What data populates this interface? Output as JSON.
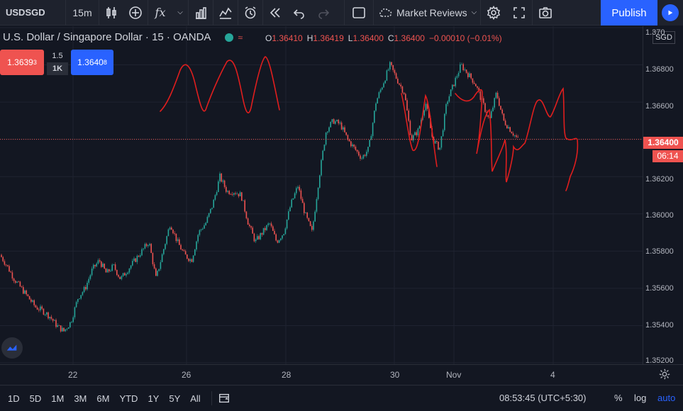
{
  "toolbar": {
    "symbol": "USDSGD",
    "interval": "15m",
    "layout_name": "Market Reviews",
    "publish_label": "Publish"
  },
  "legend": {
    "title": "U.S. Dollar / Singapore Dollar · 15 · OANDA",
    "open_key": "O",
    "open": "1.36410",
    "high_key": "H",
    "high": "1.36419",
    "low_key": "L",
    "low": "1.36400",
    "close_key": "C",
    "close": "1.36400",
    "change": "−0.00010 (−0.01%)"
  },
  "trade": {
    "sell_price": "1.3639",
    "sell_pip": "3",
    "spread": "1.5",
    "quantity": "1K",
    "buy_price": "1.3640",
    "buy_pip": "8"
  },
  "price_scale": {
    "currency": "SGD",
    "labels": [
      "1.36800",
      "1.36600",
      "1.36200",
      "1.36000",
      "1.35800",
      "1.35600",
      "1.35400",
      "1.35200",
      "1.370"
    ],
    "last_price": "1.36400",
    "countdown": "06:14"
  },
  "time_scale": {
    "labels": [
      "22",
      "26",
      "28",
      "30",
      "Nov",
      "4"
    ]
  },
  "bottom": {
    "ranges": [
      "1D",
      "5D",
      "1M",
      "3M",
      "6M",
      "YTD",
      "1Y",
      "5Y",
      "All"
    ],
    "clock": "08:53:45 (UTC+5:30)",
    "percent_label": "%",
    "log_label": "log",
    "auto_label": "auto"
  },
  "colors": {
    "up": "#26a69a",
    "down": "#ef5350",
    "accent": "#2962ff",
    "drawing": "#e01e1e"
  },
  "chart_data": {
    "type": "candlestick",
    "symbol": "USDSGD",
    "ylim": [
      1.352,
      1.37
    ],
    "close_path": [
      [
        0,
        1.3578
      ],
      [
        10,
        1.3572
      ],
      [
        20,
        1.3565
      ],
      [
        30,
        1.356
      ],
      [
        40,
        1.3555
      ],
      [
        50,
        1.355
      ],
      [
        60,
        1.3548
      ],
      [
        70,
        1.3545
      ],
      [
        80,
        1.354
      ],
      [
        90,
        1.3537
      ],
      [
        100,
        1.3542
      ],
      [
        110,
        1.3555
      ],
      [
        120,
        1.356
      ],
      [
        130,
        1.357
      ],
      [
        140,
        1.3575
      ],
      [
        150,
        1.3568
      ],
      [
        160,
        1.3572
      ],
      [
        170,
        1.3565
      ],
      [
        180,
        1.357
      ],
      [
        190,
        1.3575
      ],
      [
        200,
        1.358
      ],
      [
        210,
        1.3585
      ],
      [
        220,
        1.3565
      ],
      [
        230,
        1.358
      ],
      [
        240,
        1.3595
      ],
      [
        250,
        1.3585
      ],
      [
        260,
        1.3578
      ],
      [
        270,
        1.3575
      ],
      [
        280,
        1.359
      ],
      [
        290,
        1.3595
      ],
      [
        300,
        1.3605
      ],
      [
        310,
        1.362
      ],
      [
        320,
        1.3612
      ],
      [
        330,
        1.3612
      ],
      [
        340,
        1.361
      ],
      [
        350,
        1.3595
      ],
      [
        360,
        1.3585
      ],
      [
        370,
        1.359
      ],
      [
        380,
        1.3595
      ],
      [
        390,
        1.3585
      ],
      [
        400,
        1.359
      ],
      [
        410,
        1.3605
      ],
      [
        420,
        1.3615
      ],
      [
        430,
        1.36
      ],
      [
        440,
        1.359
      ],
      [
        450,
        1.362
      ],
      [
        460,
        1.3645
      ],
      [
        470,
        1.365
      ],
      [
        480,
        1.3648
      ],
      [
        490,
        1.364
      ],
      [
        500,
        1.3635
      ],
      [
        510,
        1.363
      ],
      [
        520,
        1.3635
      ],
      [
        530,
        1.366
      ],
      [
        540,
        1.367
      ],
      [
        550,
        1.368
      ],
      [
        560,
        1.3672
      ],
      [
        570,
        1.3665
      ],
      [
        580,
        1.364
      ],
      [
        590,
        1.3645
      ],
      [
        600,
        1.366
      ],
      [
        610,
        1.364
      ],
      [
        620,
        1.3635
      ],
      [
        630,
        1.366
      ],
      [
        640,
        1.367
      ],
      [
        650,
        1.368
      ],
      [
        660,
        1.3675
      ],
      [
        670,
        1.367
      ],
      [
        680,
        1.366
      ],
      [
        690,
        1.365
      ],
      [
        700,
        1.3665
      ],
      [
        710,
        1.365
      ],
      [
        720,
        1.3645
      ],
      [
        730,
        1.364
      ]
    ]
  }
}
